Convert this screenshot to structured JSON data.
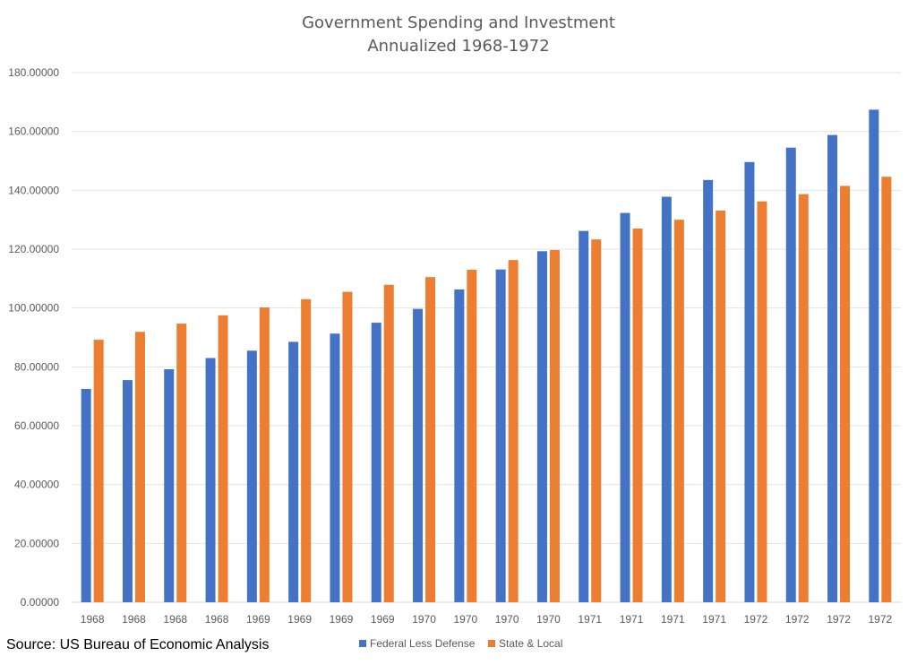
{
  "source_note": "Source: US Bureau of Economic Analysis",
  "colors": {
    "federal": "#4472C4",
    "state": "#ED7D31",
    "grid": "#E3E3E3",
    "text": "#595959"
  },
  "chart_data": {
    "type": "bar",
    "title": "Government Spending and Investment",
    "subtitle": "Annualized 1968-1972",
    "xlabel": "",
    "ylabel": "",
    "ylim": [
      0,
      180
    ],
    "ytick_step": 20,
    "ytick_format_decimals": 5,
    "grid": true,
    "legend_position": "bottom",
    "categories": [
      "1968",
      "1968",
      "1968",
      "1968",
      "1969",
      "1969",
      "1969",
      "1969",
      "1970",
      "1970",
      "1970",
      "1970",
      "1971",
      "1971",
      "1971",
      "1971",
      "1972",
      "1972",
      "1972",
      "1972"
    ],
    "series": [
      {
        "name": "Federal Less Defense",
        "color": "#4472C4",
        "values": [
          72.5,
          75.5,
          79.2,
          83.0,
          85.5,
          88.5,
          91.3,
          95.0,
          99.7,
          106.3,
          113.1,
          119.3,
          126.2,
          132.3,
          137.8,
          143.5,
          149.6,
          154.5,
          158.8,
          167.4
        ]
      },
      {
        "name": "State & Local",
        "color": "#ED7D31",
        "values": [
          89.2,
          91.9,
          94.7,
          97.5,
          100.2,
          103.0,
          105.5,
          107.9,
          110.5,
          113.0,
          116.3,
          119.7,
          123.3,
          127.0,
          130.0,
          133.1,
          136.2,
          138.7,
          141.5,
          144.6
        ]
      }
    ]
  }
}
